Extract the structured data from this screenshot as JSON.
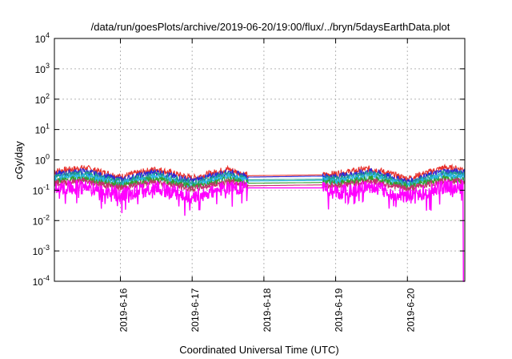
{
  "chart_data": {
    "type": "line",
    "title": "/data/run/goesPlots/archive/2019-06-20/19:00/flux/../bryn/5daysEarthData.plot",
    "xlabel": "Coordinated Universal Time (UTC)",
    "ylabel": "cGy/day",
    "yscale": "log",
    "ylim": [
      0.0001,
      10000
    ],
    "xlim": [
      15.08,
      20.8
    ],
    "grid": true,
    "y_ticks": [
      {
        "base": "10",
        "exp": "-4"
      },
      {
        "base": "10",
        "exp": "-3"
      },
      {
        "base": "10",
        "exp": "-2"
      },
      {
        "base": "10",
        "exp": "-1"
      },
      {
        "base": "10",
        "exp": "0"
      },
      {
        "base": "10",
        "exp": "1"
      },
      {
        "base": "10",
        "exp": "2"
      },
      {
        "base": "10",
        "exp": "3"
      },
      {
        "base": "10",
        "exp": "4"
      }
    ],
    "x_ticks": [
      {
        "value": 16,
        "label": "2019-6-16"
      },
      {
        "value": 17,
        "label": "2019-6-17"
      },
      {
        "value": 18,
        "label": "2019-6-18"
      },
      {
        "value": 19,
        "label": "2019-6-19"
      },
      {
        "value": 20,
        "label": "2019-6-20"
      }
    ],
    "data_gap": [
      17.78,
      18.82
    ],
    "series": [
      {
        "color": "#e8302a",
        "x": [
          15.08,
          15.5,
          16.0,
          16.5,
          17.0,
          17.5,
          17.78,
          18.82,
          19.0,
          19.5,
          20.0,
          20.5,
          20.8
        ],
        "y": [
          0.42,
          0.55,
          0.28,
          0.5,
          0.25,
          0.5,
          0.3,
          0.32,
          0.35,
          0.52,
          0.24,
          0.55,
          0.5
        ]
      },
      {
        "color": "#2a2ad8",
        "x": [
          15.08,
          15.5,
          16.0,
          16.5,
          17.0,
          17.5,
          17.78,
          18.82,
          19.0,
          19.5,
          20.0,
          20.5,
          20.8
        ],
        "y": [
          0.33,
          0.42,
          0.22,
          0.4,
          0.2,
          0.4,
          0.27,
          0.29,
          0.28,
          0.42,
          0.19,
          0.42,
          0.4
        ]
      },
      {
        "color": "#1f9e8c",
        "x": [
          15.08,
          15.5,
          16.0,
          16.5,
          17.0,
          17.5,
          17.78,
          18.82,
          19.0,
          19.5,
          20.0,
          20.5,
          20.8
        ],
        "y": [
          0.28,
          0.35,
          0.19,
          0.33,
          0.17,
          0.33,
          0.22,
          0.23,
          0.23,
          0.35,
          0.16,
          0.35,
          0.33
        ]
      },
      {
        "color": "#29b6e8",
        "x": [
          15.08,
          15.5,
          16.0,
          16.5,
          17.0,
          17.5,
          17.78,
          18.82,
          19.0,
          19.5,
          20.0,
          20.5,
          20.8
        ],
        "y": [
          0.24,
          0.3,
          0.16,
          0.28,
          0.14,
          0.28,
          0.2,
          0.21,
          0.2,
          0.3,
          0.14,
          0.3,
          0.28
        ]
      },
      {
        "color": "#33a02c",
        "x": [
          15.08,
          15.5,
          16.0,
          16.5,
          17.0,
          17.5,
          17.78,
          18.82,
          19.0,
          19.5,
          20.0,
          20.5,
          20.8
        ],
        "y": [
          0.2,
          0.24,
          0.14,
          0.23,
          0.13,
          0.23,
          0.17,
          0.18,
          0.17,
          0.24,
          0.13,
          0.24,
          0.22
        ]
      },
      {
        "color": "#c62f6e",
        "x": [
          15.08,
          15.5,
          16.0,
          16.5,
          17.0,
          17.5,
          17.78,
          18.82,
          19.0,
          19.5,
          20.0,
          20.5,
          20.8
        ],
        "y": [
          0.17,
          0.2,
          0.12,
          0.19,
          0.11,
          0.19,
          0.14,
          0.15,
          0.14,
          0.2,
          0.11,
          0.2,
          0.19
        ]
      },
      {
        "color": "#ff00ff",
        "x": [
          15.08,
          15.5,
          16.0,
          16.5,
          17.0,
          17.5,
          17.78,
          18.82,
          19.0,
          19.5,
          20.0,
          20.5,
          20.78,
          20.8
        ],
        "y": [
          0.12,
          0.13,
          0.07,
          0.12,
          0.06,
          0.12,
          0.12,
          0.12,
          0.08,
          0.13,
          0.06,
          0.13,
          0.13,
          0.0001
        ]
      }
    ]
  }
}
